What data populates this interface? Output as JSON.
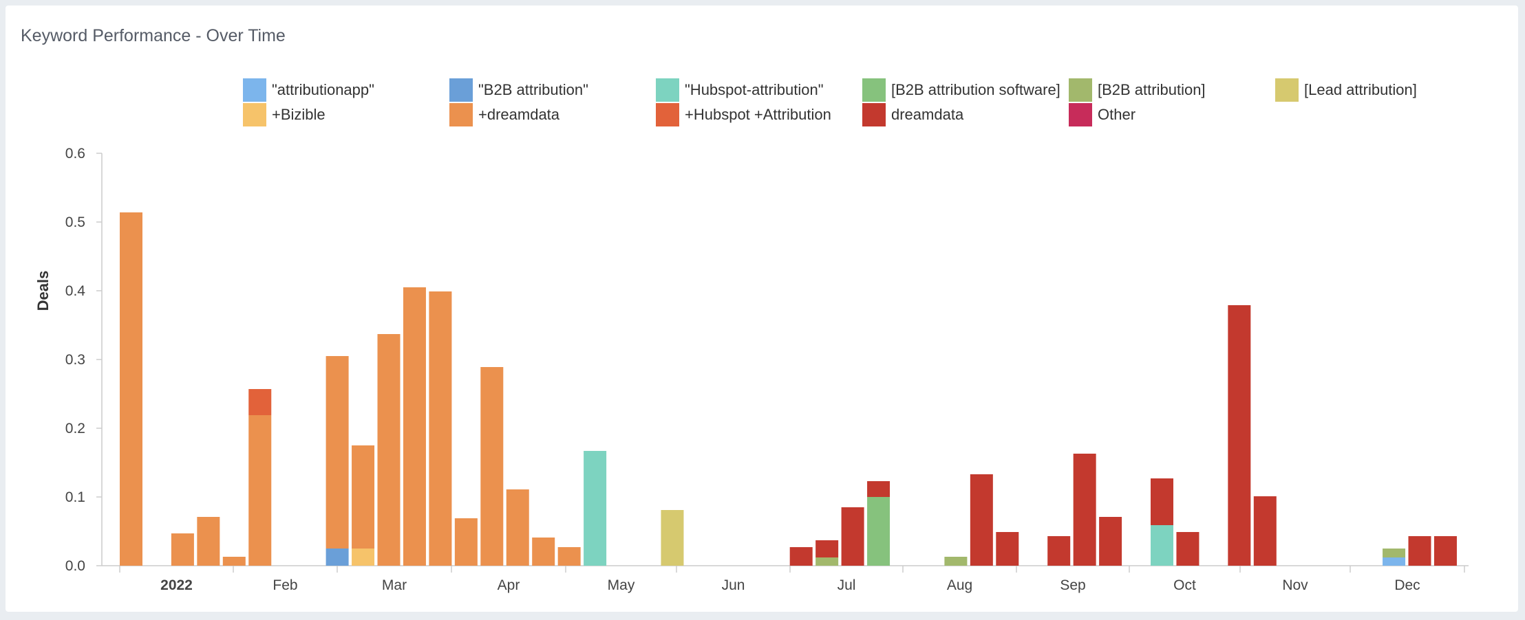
{
  "title": "Keyword Performance - Over Time",
  "legend": [
    {
      "label": "\"attributionapp\"",
      "color": "#7cb5ec"
    },
    {
      "label": "\"B2B attribution\"",
      "color": "#6a9fd8"
    },
    {
      "label": "\"Hubspot-attribution\"",
      "color": "#7dd3c0"
    },
    {
      "label": "[B2B attribution software]",
      "color": "#86c27d"
    },
    {
      "label": "[B2B attribution]",
      "color": "#a2b86c"
    },
    {
      "label": "[Lead attribution]",
      "color": "#d6c96f"
    },
    {
      "label": "+Bizible",
      "color": "#f6c36a"
    },
    {
      "label": "+dreamdata",
      "color": "#eb914e"
    },
    {
      "label": "+Hubspot +Attribution",
      "color": "#e2623a"
    },
    {
      "label": "dreamdata",
      "color": "#c3392e"
    },
    {
      "label": "Other",
      "color": "#c72c5a"
    }
  ],
  "chart_data": {
    "type": "bar",
    "stacked": true,
    "title": "",
    "xlabel": "",
    "ylabel": "Deals",
    "ylim": [
      0,
      0.6
    ],
    "yticks": [
      "0.0",
      "0.1",
      "0.2",
      "0.3",
      "0.4",
      "0.5",
      "0.6"
    ],
    "month_labels": [
      "2022",
      "Feb",
      "Mar",
      "Apr",
      "May",
      "Jun",
      "Jul",
      "Aug",
      "Sep",
      "Oct",
      "Nov",
      "Dec"
    ],
    "grid": false,
    "legend_position": "top",
    "x": [
      "Jan 3",
      "Jan 10",
      "Jan 17",
      "Jan 24",
      "Jan 31",
      "Feb 7",
      "Feb 14",
      "Feb 21",
      "Feb 28",
      "Mar 7",
      "Mar 14",
      "Mar 21",
      "Mar 28",
      "Apr 4",
      "Apr 11",
      "Apr 18",
      "Apr 25",
      "May 2",
      "May 9",
      "May 16",
      "May 23",
      "May 30",
      "Jun 6",
      "Jun 13",
      "Jun 20",
      "Jun 27",
      "Jul 4",
      "Jul 11",
      "Jul 18",
      "Jul 25",
      "Aug 1",
      "Aug 8",
      "Aug 15",
      "Aug 22",
      "Aug 29",
      "Sep 5",
      "Sep 12",
      "Sep 19",
      "Sep 26",
      "Oct 3",
      "Oct 10",
      "Oct 17",
      "Oct 24",
      "Oct 31",
      "Nov 7",
      "Nov 14",
      "Nov 21",
      "Nov 28",
      "Dec 5",
      "Dec 12",
      "Dec 19",
      "Dec 26"
    ],
    "series": [
      {
        "name": "\"attributionapp\"",
        "values": [
          0,
          0,
          0,
          0,
          0,
          0,
          0,
          0,
          0,
          0,
          0,
          0,
          0,
          0,
          0,
          0,
          0,
          0,
          0,
          0,
          0,
          0,
          0,
          0,
          0,
          0,
          0,
          0,
          0,
          0,
          0,
          0,
          0,
          0,
          0,
          0,
          0,
          0,
          0,
          0,
          0,
          0,
          0,
          0,
          0,
          0,
          0,
          0,
          0,
          0.012,
          0,
          0
        ]
      },
      {
        "name": "\"B2B attribution\"",
        "values": [
          0,
          0,
          0,
          0,
          0,
          0,
          0,
          0,
          0.025,
          0,
          0,
          0,
          0,
          0,
          0,
          0,
          0,
          0,
          0,
          0,
          0,
          0,
          0,
          0,
          0,
          0,
          0,
          0,
          0,
          0,
          0,
          0,
          0,
          0,
          0,
          0,
          0,
          0,
          0,
          0,
          0,
          0,
          0,
          0,
          0,
          0,
          0,
          0,
          0,
          0,
          0,
          0
        ]
      },
      {
        "name": "\"Hubspot-attribution\"",
        "values": [
          0,
          0,
          0,
          0,
          0,
          0,
          0,
          0,
          0,
          0,
          0,
          0,
          0,
          0,
          0,
          0,
          0,
          0,
          0.167,
          0,
          0,
          0,
          0,
          0,
          0,
          0,
          0,
          0,
          0,
          0,
          0,
          0,
          0,
          0,
          0,
          0,
          0,
          0,
          0,
          0,
          0.059,
          0,
          0,
          0,
          0,
          0,
          0,
          0,
          0,
          0,
          0,
          0
        ]
      },
      {
        "name": "[B2B attribution software]",
        "values": [
          0,
          0,
          0,
          0,
          0,
          0,
          0,
          0,
          0,
          0,
          0,
          0,
          0,
          0,
          0,
          0,
          0,
          0,
          0,
          0,
          0,
          0,
          0,
          0,
          0,
          0,
          0,
          0,
          0,
          0.1,
          0,
          0,
          0,
          0,
          0,
          0,
          0,
          0,
          0,
          0,
          0,
          0,
          0,
          0,
          0,
          0,
          0,
          0,
          0,
          0,
          0,
          0
        ]
      },
      {
        "name": "[B2B attribution]",
        "values": [
          0,
          0,
          0,
          0,
          0,
          0,
          0,
          0,
          0,
          0,
          0,
          0,
          0,
          0,
          0,
          0,
          0,
          0,
          0,
          0,
          0,
          0,
          0,
          0,
          0,
          0,
          0,
          0.012,
          0,
          0,
          0,
          0,
          0.013,
          0,
          0,
          0,
          0,
          0,
          0,
          0,
          0,
          0,
          0,
          0,
          0,
          0,
          0,
          0,
          0,
          0.013,
          0,
          0
        ]
      },
      {
        "name": "[Lead attribution]",
        "values": [
          0,
          0,
          0,
          0,
          0,
          0,
          0,
          0,
          0,
          0,
          0,
          0,
          0,
          0,
          0,
          0,
          0,
          0,
          0,
          0,
          0,
          0.081,
          0,
          0,
          0,
          0,
          0,
          0,
          0,
          0,
          0,
          0,
          0,
          0,
          0,
          0,
          0,
          0,
          0,
          0,
          0,
          0,
          0,
          0,
          0,
          0,
          0,
          0,
          0,
          0,
          0,
          0
        ]
      },
      {
        "name": "+Bizible",
        "values": [
          0,
          0,
          0,
          0,
          0,
          0,
          0,
          0,
          0,
          0.025,
          0,
          0,
          0,
          0,
          0,
          0,
          0,
          0,
          0,
          0,
          0,
          0,
          0,
          0,
          0,
          0,
          0,
          0,
          0,
          0,
          0,
          0,
          0,
          0,
          0,
          0,
          0,
          0,
          0,
          0,
          0,
          0,
          0,
          0,
          0,
          0,
          0,
          0,
          0,
          0,
          0,
          0
        ]
      },
      {
        "name": "+dreamdata",
        "values": [
          0.514,
          0,
          0.047,
          0.071,
          0.013,
          0.219,
          0,
          0,
          0.28,
          0.15,
          0.337,
          0.405,
          0.399,
          0.069,
          0.289,
          0.111,
          0.041,
          0.027,
          0,
          0,
          0,
          0,
          0,
          0,
          0,
          0,
          0,
          0,
          0,
          0,
          0,
          0,
          0,
          0,
          0,
          0,
          0,
          0,
          0,
          0,
          0,
          0,
          0,
          0,
          0,
          0,
          0,
          0,
          0,
          0,
          0,
          0
        ]
      },
      {
        "name": "+Hubspot +Attribution",
        "values": [
          0,
          0,
          0,
          0,
          0,
          0.038,
          0,
          0,
          0,
          0,
          0,
          0,
          0,
          0,
          0,
          0,
          0,
          0,
          0,
          0,
          0,
          0,
          0,
          0,
          0,
          0,
          0,
          0,
          0,
          0,
          0,
          0,
          0,
          0,
          0,
          0,
          0,
          0,
          0,
          0,
          0,
          0,
          0,
          0,
          0,
          0,
          0,
          0,
          0,
          0,
          0,
          0
        ]
      },
      {
        "name": "dreamdata",
        "values": [
          0,
          0,
          0,
          0,
          0,
          0,
          0,
          0,
          0,
          0,
          0,
          0,
          0,
          0,
          0,
          0,
          0,
          0,
          0,
          0,
          0,
          0,
          0,
          0,
          0,
          0,
          0.027,
          0.025,
          0.085,
          0.023,
          0,
          0,
          0,
          0.133,
          0.049,
          0,
          0.043,
          0.163,
          0.071,
          0,
          0.068,
          0.049,
          0,
          0.379,
          0.101,
          0,
          0,
          0,
          0,
          0,
          0.043,
          0.043
        ]
      },
      {
        "name": "Other",
        "values": [
          0,
          0,
          0,
          0,
          0,
          0,
          0,
          0,
          0,
          0,
          0,
          0,
          0,
          0,
          0,
          0,
          0,
          0,
          0,
          0,
          0,
          0,
          0,
          0,
          0,
          0,
          0,
          0,
          0,
          0,
          0,
          0,
          0,
          0,
          0,
          0,
          0,
          0,
          0,
          0,
          0,
          0,
          0,
          0,
          0,
          0,
          0,
          0,
          0,
          0,
          0,
          0
        ]
      }
    ]
  }
}
